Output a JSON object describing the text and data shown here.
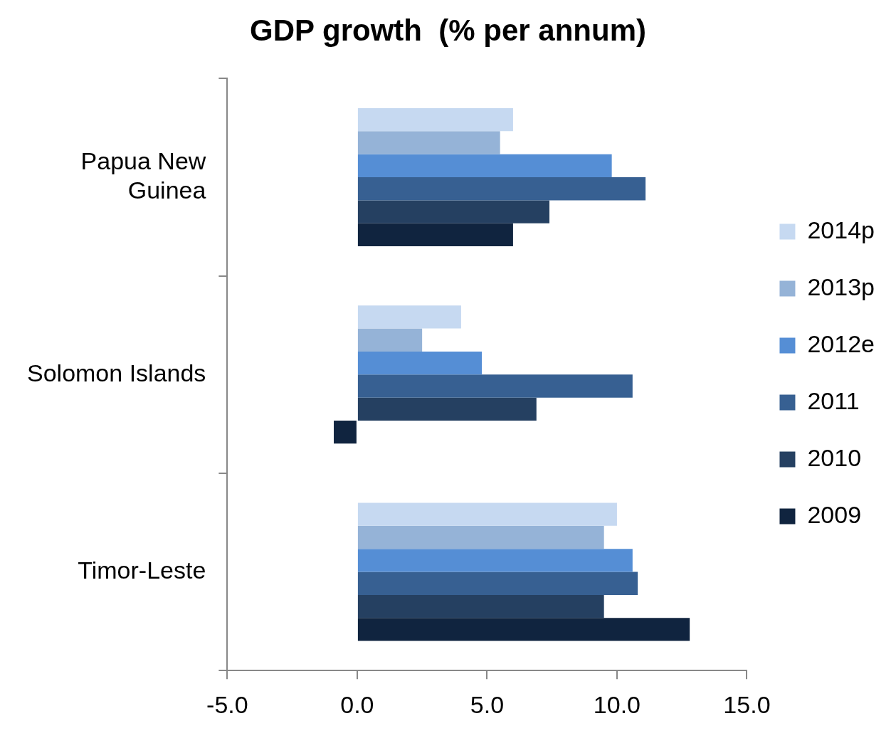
{
  "chart_data": {
    "type": "bar",
    "orientation": "horizontal",
    "title": "GDP growth  (% per annum)",
    "categories": [
      "Papua New Guinea",
      "Solomon Islands",
      "Timor-Leste"
    ],
    "series": [
      {
        "name": "2014p",
        "color": "#c6d9f1",
        "values": [
          6.0,
          4.0,
          10.0
        ]
      },
      {
        "name": "2013p",
        "color": "#95b3d7",
        "values": [
          5.5,
          2.5,
          9.5
        ]
      },
      {
        "name": "2012e",
        "color": "#558ed5",
        "values": [
          9.8,
          4.8,
          10.6
        ]
      },
      {
        "name": "2011",
        "color": "#376092",
        "values": [
          11.1,
          10.6,
          10.8
        ]
      },
      {
        "name": "2010",
        "color": "#254061",
        "values": [
          7.4,
          6.9,
          9.5
        ]
      },
      {
        "name": "2009",
        "color": "#10243f",
        "values": [
          6.0,
          -0.9,
          12.8
        ]
      }
    ],
    "xlim": [
      -5,
      15
    ],
    "xticks": [
      {
        "value": -5,
        "label": "-5.0"
      },
      {
        "value": 0,
        "label": "0.0"
      },
      {
        "value": 5,
        "label": "5.0"
      },
      {
        "value": 10,
        "label": "10.0"
      },
      {
        "value": 15,
        "label": "15.0"
      }
    ],
    "grid": false,
    "legend": "right"
  }
}
